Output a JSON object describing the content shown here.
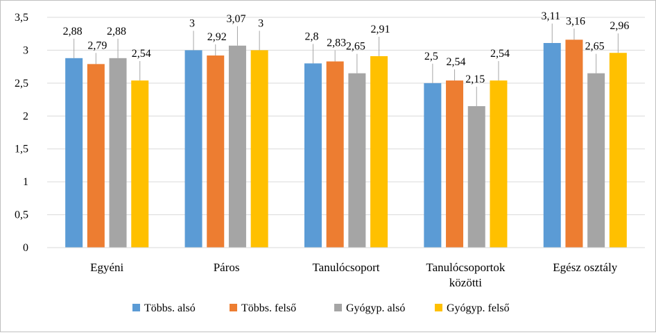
{
  "chart_data": {
    "type": "bar",
    "title": "",
    "xlabel": "",
    "ylabel": "",
    "ylim": [
      0,
      3.5
    ],
    "yticks": [
      {
        "value": 0,
        "label": "0"
      },
      {
        "value": 0.5,
        "label": "0,5"
      },
      {
        "value": 1,
        "label": "1"
      },
      {
        "value": 1.5,
        "label": "1,5"
      },
      {
        "value": 2,
        "label": "2"
      },
      {
        "value": 2.5,
        "label": "2,5"
      },
      {
        "value": 3,
        "label": "3"
      },
      {
        "value": 3.5,
        "label": "3,5"
      }
    ],
    "grid": "horizontal",
    "legend_position": "bottom",
    "categories": [
      [
        "Egyéni"
      ],
      [
        "Páros"
      ],
      [
        "Tanulócsoport"
      ],
      [
        "Tanulócsoportok",
        "közötti"
      ],
      [
        "Egész osztály"
      ]
    ],
    "series": [
      {
        "name": "Többs. alsó",
        "color": "#5B9BD5",
        "values": [
          2.88,
          3,
          2.8,
          2.5,
          3.11
        ],
        "labels": [
          "2,88",
          "3",
          "2,8",
          "2,5",
          "3,11"
        ]
      },
      {
        "name": "Többs. felső",
        "color": "#ED7D31",
        "values": [
          2.79,
          2.92,
          2.83,
          2.54,
          3.16
        ],
        "labels": [
          "2,79",
          "2,92",
          "2,83",
          "2,54",
          "3,16"
        ]
      },
      {
        "name": "Gyógyp. alsó",
        "color": "#A5A5A5",
        "values": [
          2.88,
          3.07,
          2.65,
          2.15,
          2.65
        ],
        "labels": [
          "2,88",
          "3,07",
          "2,65",
          "2,15",
          "2,65"
        ]
      },
      {
        "name": "Gyógyp. felső",
        "color": "#FFC000",
        "values": [
          2.54,
          3,
          2.91,
          2.54,
          2.96
        ],
        "labels": [
          "2,54",
          "3",
          "2,91",
          "2,54",
          "2,96"
        ]
      }
    ]
  }
}
